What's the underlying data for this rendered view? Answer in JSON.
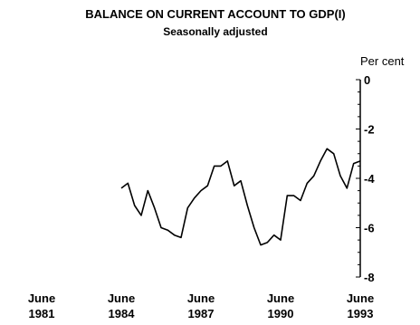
{
  "chart_data": {
    "type": "line",
    "title": "BALANCE ON CURRENT ACCOUNT TO GDP(I)",
    "subtitle": "Seasonally adjusted",
    "y_unit": "Per cent",
    "ylim": [
      -8,
      0
    ],
    "y_ticks": [
      "0",
      "-2",
      "-4",
      "-6",
      "-8"
    ],
    "y_tick_values": [
      0,
      -2,
      -4,
      -6,
      -8
    ],
    "xlim": [
      1981.5,
      1993.5
    ],
    "x_ticks": [
      {
        "month": "June",
        "year": "1981",
        "value": 1981.5
      },
      {
        "month": "June",
        "year": "1984",
        "value": 1984.5
      },
      {
        "month": "June",
        "year": "1987",
        "value": 1987.5
      },
      {
        "month": "June",
        "year": "1990",
        "value": 1990.5
      },
      {
        "month": "June",
        "year": "1993",
        "value": 1993.5
      }
    ],
    "axis_side": "right",
    "grid": false,
    "legend": "none",
    "line_color": "#000000",
    "series": [
      {
        "x": [
          1984.5,
          1984.75,
          1985.0,
          1985.25,
          1985.5,
          1985.75,
          1986.0,
          1986.25,
          1986.5,
          1986.75,
          1987.0,
          1987.25,
          1987.5,
          1987.75,
          1988.0,
          1988.25,
          1988.5,
          1988.75,
          1989.0,
          1989.25,
          1989.5,
          1989.75,
          1990.0,
          1990.25,
          1990.5,
          1990.75,
          1991.0,
          1991.25,
          1991.5,
          1991.75,
          1992.0,
          1992.25,
          1992.5,
          1992.75,
          1993.0,
          1993.25,
          1993.5
        ],
        "values": [
          -4.4,
          -4.2,
          -5.1,
          -5.5,
          -4.5,
          -5.2,
          -6.0,
          -6.1,
          -6.3,
          -6.4,
          -5.2,
          -4.8,
          -4.5,
          -4.3,
          -3.5,
          -3.5,
          -3.3,
          -4.3,
          -4.1,
          -5.1,
          -6.0,
          -6.7,
          -6.6,
          -6.3,
          -6.5,
          -4.7,
          -4.7,
          -4.9,
          -4.2,
          -3.9,
          -3.3,
          -2.8,
          -3.0,
          -3.9,
          -4.4,
          -3.4,
          -3.3
        ]
      }
    ]
  }
}
